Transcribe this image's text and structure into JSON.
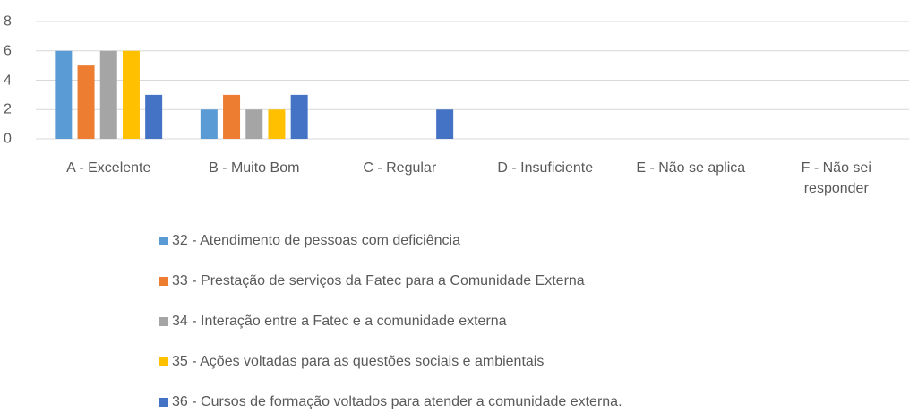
{
  "chart_data": {
    "type": "bar",
    "categories": [
      "A - Excelente",
      "B - Muito Bom",
      "C - Regular",
      "D - Insuficiente",
      "E - Não se aplica",
      "F - Não sei responder"
    ],
    "series": [
      {
        "name": "32 - Atendimento de pessoas com deficiência",
        "color": "#5b9bd5",
        "values": [
          6,
          2,
          0,
          0,
          0,
          0
        ]
      },
      {
        "name": "33 - Prestação de serviços da Fatec para a Comunidade Externa",
        "color": "#ed7d31",
        "values": [
          5,
          3,
          0,
          0,
          0,
          0
        ]
      },
      {
        "name": "34 - Interação entre a Fatec e a comunidade externa",
        "color": "#a5a5a5",
        "values": [
          6,
          2,
          0,
          0,
          0,
          0
        ]
      },
      {
        "name": "35 - Ações voltadas para as questões sociais e ambientais",
        "color": "#ffc000",
        "values": [
          6,
          2,
          0,
          0,
          0,
          0
        ]
      },
      {
        "name": "36 - Cursos de formação voltados para atender a comunidade externa.",
        "color": "#4472c4",
        "values": [
          3,
          3,
          2,
          0,
          0,
          0
        ]
      }
    ],
    "ylim": [
      0,
      8
    ],
    "yticks": [
      0,
      2,
      4,
      6,
      8
    ],
    "grid": true,
    "legend": "bottom"
  }
}
